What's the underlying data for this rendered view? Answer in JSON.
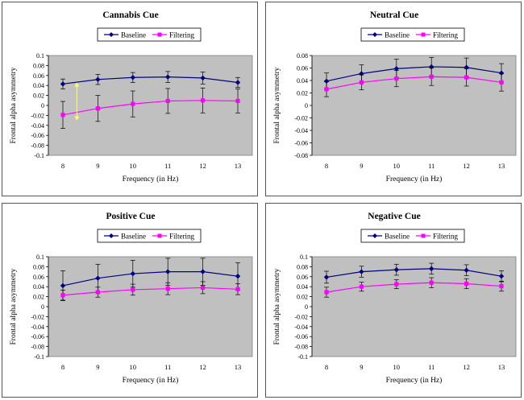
{
  "chart_data": [
    {
      "type": "line",
      "title": "Cannabis Cue",
      "xlabel": "Frequency (in Hz)",
      "ylabel": "Frontal alpha asymmetry",
      "x": [
        8,
        9,
        10,
        11,
        12,
        13
      ],
      "ylim": [
        -0.1,
        0.1
      ],
      "yticks": [
        "0.1",
        "0.08",
        "0.06",
        "0.04",
        "0.02",
        "0",
        "-0.02",
        "-0.04",
        "-0.06",
        "-0.08",
        "-0.1"
      ],
      "legend_position": "top",
      "grid": false,
      "background": "#c0c0c0",
      "annotation": {
        "type": "double-arrow",
        "x": 8.4,
        "y_from": 0.046,
        "y_to": -0.03,
        "color": "#ffff66"
      },
      "series": [
        {
          "name": "Baseline",
          "color": "#000080",
          "marker": "diamond",
          "values": [
            0.043,
            0.052,
            0.056,
            0.057,
            0.055,
            0.046
          ],
          "errors": [
            0.01,
            0.01,
            0.01,
            0.011,
            0.012,
            0.01
          ]
        },
        {
          "name": "Filtering",
          "color": "#ff00ff",
          "marker": "square",
          "values": [
            -0.019,
            -0.006,
            0.003,
            0.009,
            0.01,
            0.009
          ],
          "errors": [
            0.027,
            0.026,
            0.026,
            0.025,
            0.025,
            0.024
          ]
        }
      ]
    },
    {
      "type": "line",
      "title": "Neutral Cue",
      "xlabel": "Frequency (in Hz)",
      "ylabel": "Frontal alpha asymmetry",
      "x": [
        8,
        9,
        10,
        11,
        12,
        13
      ],
      "ylim": [
        -0.08,
        0.08
      ],
      "yticks": [
        "0.08",
        "0.06",
        "0.04",
        "0.02",
        "0",
        "-0.02",
        "-0.04",
        "-0.06",
        "-0.08"
      ],
      "legend_position": "top",
      "grid": false,
      "background": "#c0c0c0",
      "series": [
        {
          "name": "Baseline",
          "color": "#000080",
          "marker": "diamond",
          "values": [
            0.039,
            0.051,
            0.059,
            0.062,
            0.061,
            0.052
          ],
          "errors": [
            0.013,
            0.014,
            0.015,
            0.015,
            0.015,
            0.015
          ]
        },
        {
          "name": "Filtering",
          "color": "#ff00ff",
          "marker": "square",
          "values": [
            0.026,
            0.037,
            0.043,
            0.046,
            0.045,
            0.037
          ],
          "errors": [
            0.012,
            0.012,
            0.013,
            0.014,
            0.014,
            0.014
          ]
        }
      ]
    },
    {
      "type": "line",
      "title": "Positive Cue",
      "xlabel": "Frequency (in Hz)",
      "ylabel": "Frontal alpha asymmetry",
      "x": [
        8,
        9,
        10,
        11,
        12,
        13
      ],
      "ylim": [
        -0.1,
        0.1
      ],
      "yticks": [
        "0.1",
        "0.08",
        "0.06",
        "0.04",
        "0.02",
        "0",
        "-0.02",
        "-0.04",
        "-0.06",
        "-0.08",
        "-0.1"
      ],
      "legend_position": "top",
      "grid": false,
      "background": "#c0c0c0",
      "series": [
        {
          "name": "Baseline",
          "color": "#000080",
          "marker": "diamond",
          "values": [
            0.042,
            0.057,
            0.066,
            0.07,
            0.07,
            0.061
          ],
          "errors": [
            0.03,
            0.028,
            0.027,
            0.027,
            0.027,
            0.027
          ]
        },
        {
          "name": "Filtering",
          "color": "#ff00ff",
          "marker": "square",
          "values": [
            0.023,
            0.029,
            0.034,
            0.036,
            0.038,
            0.035
          ],
          "errors": [
            0.01,
            0.01,
            0.011,
            0.012,
            0.012,
            0.011
          ]
        }
      ]
    },
    {
      "type": "line",
      "title": "Negative Cue",
      "xlabel": "Frequency (in Hz)",
      "ylabel": "Frontal alpha asymmetry",
      "x": [
        8,
        9,
        10,
        11,
        12,
        13
      ],
      "ylim": [
        -0.1,
        0.1
      ],
      "yticks": [
        "0.1",
        "0.08",
        "0.06",
        "0.04",
        "0.02",
        "0",
        "-0.02",
        "-0.04",
        "-0.06",
        "-0.08",
        "-0.1"
      ],
      "legend_position": "top",
      "grid": false,
      "background": "#c0c0c0",
      "series": [
        {
          "name": "Baseline",
          "color": "#000080",
          "marker": "diamond",
          "values": [
            0.059,
            0.07,
            0.074,
            0.076,
            0.073,
            0.061
          ],
          "errors": [
            0.012,
            0.011,
            0.011,
            0.011,
            0.011,
            0.011
          ]
        },
        {
          "name": "Filtering",
          "color": "#ff00ff",
          "marker": "square",
          "values": [
            0.029,
            0.04,
            0.045,
            0.048,
            0.046,
            0.041
          ],
          "errors": [
            0.01,
            0.009,
            0.009,
            0.01,
            0.01,
            0.01
          ]
        }
      ]
    }
  ]
}
